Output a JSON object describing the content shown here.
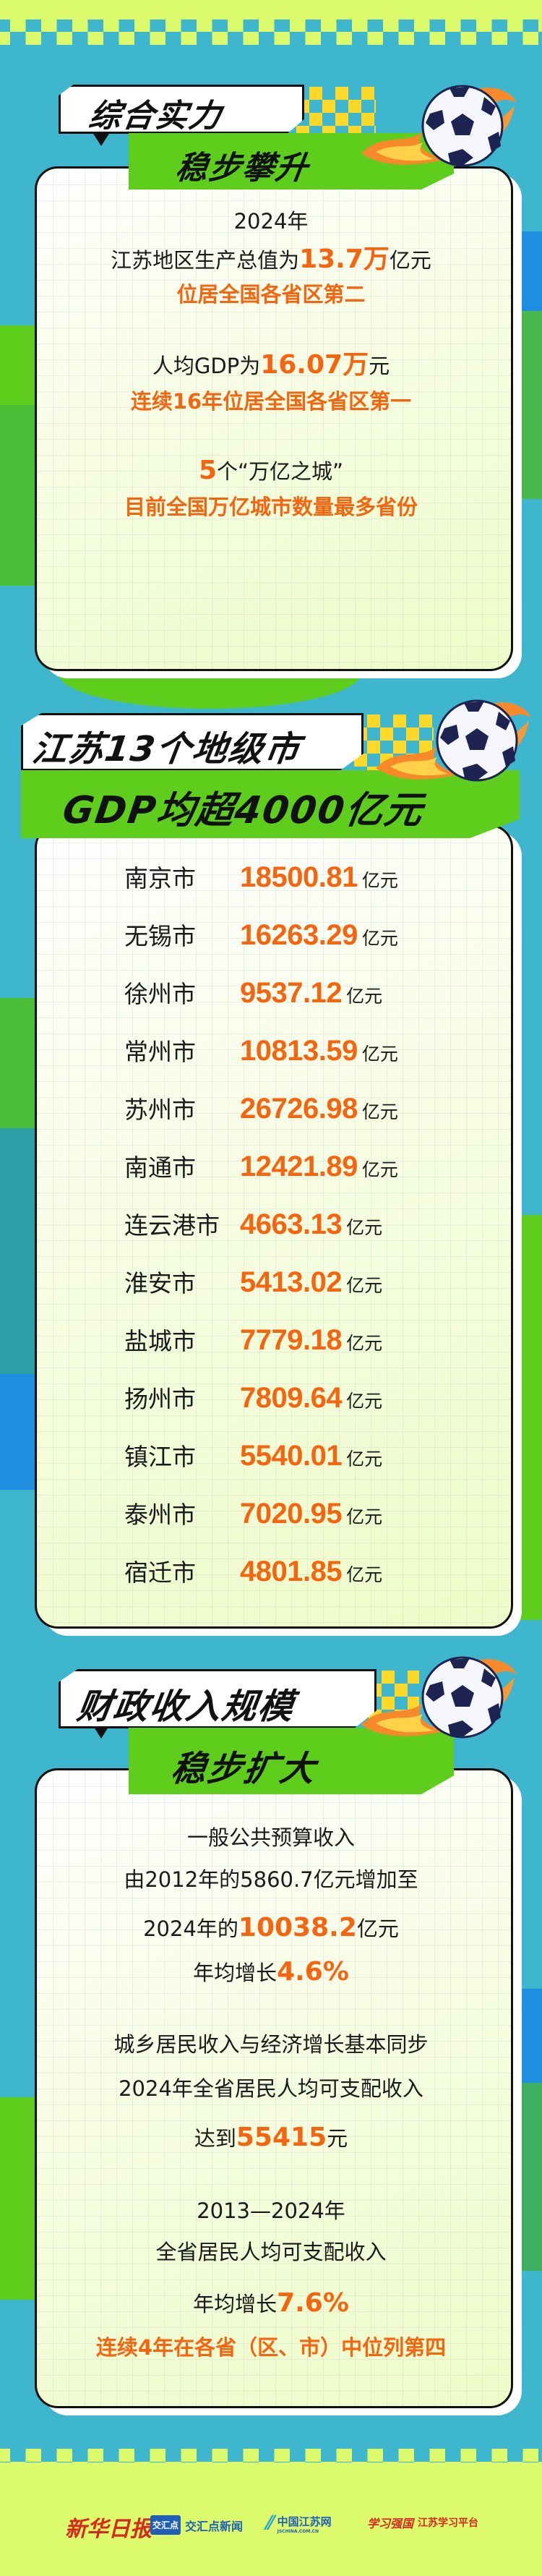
{
  "colors": {
    "background": "#3eb6cd",
    "lime": "#dcfb6c",
    "green": "#5fcd1c",
    "highlight": "#f5640f",
    "text": "#1a1a1a"
  },
  "icons": [
    "soccer-ball-icon",
    "flame-icon"
  ],
  "section1": {
    "title_top": "综合实力",
    "title_bottom": "稳步攀升",
    "lines": [
      [
        {
          "t": "2024年"
        }
      ],
      [
        {
          "t": "江苏地区生产总值为"
        },
        {
          "t": "13.7万",
          "hl": true
        },
        {
          "t": "亿元"
        }
      ],
      [
        {
          "t": "位居全国各省区第二",
          "o": true
        }
      ],
      [
        {
          "t": "人均GDP为"
        },
        {
          "t": "16.07万",
          "hl": true
        },
        {
          "t": "元"
        }
      ],
      [
        {
          "t": "连续16年位居全国各省区第一",
          "o": true
        }
      ],
      [
        {
          "t": "5",
          "hl": true
        },
        {
          "t": "个“万亿之城”"
        }
      ],
      [
        {
          "t": "目前全国万亿城市数量最多省份",
          "o": true
        }
      ]
    ]
  },
  "section2": {
    "title_top": "江苏13个地级市",
    "title_bottom": "GDP均超4000亿元",
    "unit": "亿元",
    "cities": [
      {
        "name": "南京市",
        "gdp": "18500.81"
      },
      {
        "name": "无锡市",
        "gdp": "16263.29"
      },
      {
        "name": "徐州市",
        "gdp": "9537.12"
      },
      {
        "name": "常州市",
        "gdp": "10813.59"
      },
      {
        "name": "苏州市",
        "gdp": "26726.98"
      },
      {
        "name": "南通市",
        "gdp": "12421.89"
      },
      {
        "name": "连云港市",
        "gdp": "4663.13"
      },
      {
        "name": "淮安市",
        "gdp": "5413.02"
      },
      {
        "name": "盐城市",
        "gdp": "7779.18"
      },
      {
        "name": "扬州市",
        "gdp": "7809.64"
      },
      {
        "name": "镇江市",
        "gdp": "5540.01"
      },
      {
        "name": "泰州市",
        "gdp": "7020.95"
      },
      {
        "name": "宿迁市",
        "gdp": "4801.85"
      }
    ]
  },
  "section3": {
    "title_top": "财政收入规模",
    "title_bottom": "稳步扩大",
    "lines": [
      [
        {
          "t": "一般公共预算收入"
        }
      ],
      [
        {
          "t": "由2012年的5860.7亿元增加至"
        }
      ],
      [
        {
          "t": "2024年的"
        },
        {
          "t": "10038.2",
          "hl": true
        },
        {
          "t": "亿元"
        }
      ],
      [
        {
          "t": "年均增长"
        },
        {
          "t": "4.6%",
          "hl": true
        }
      ],
      [
        {
          "t": "城乡居民收入与经济增长基本同步"
        }
      ],
      [
        {
          "t": "2024年全省居民人均可支配收入"
        }
      ],
      [
        {
          "t": "达到"
        },
        {
          "t": "55415",
          "hl": true
        },
        {
          "t": "元"
        }
      ],
      [
        {
          "t": "2013—2024年"
        }
      ],
      [
        {
          "t": "全省居民人均可支配收入"
        }
      ],
      [
        {
          "t": "年均增长"
        },
        {
          "t": "7.6%",
          "hl": true
        }
      ],
      [
        {
          "t": "连续4年在各省（区、市）中位列第四",
          "o": true
        }
      ]
    ]
  },
  "footer": {
    "logos": [
      {
        "name": "新华日报"
      },
      {
        "name": "交汇点新闻",
        "badge": "交汇点"
      },
      {
        "name": "中国江苏网",
        "sub": "JSCHINA.COM.CN"
      },
      {
        "name": "江苏学习平台",
        "badge": "学习强国"
      }
    ]
  }
}
